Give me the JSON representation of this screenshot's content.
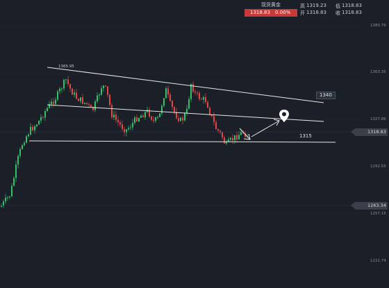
{
  "ticker": {
    "name": "现货黄金",
    "price": "1318.83",
    "change_pct": "0.00%",
    "high_label": "高",
    "high": "1319.23",
    "low_label": "低",
    "low": "1318.83",
    "open_label": "开",
    "open": "1318.83",
    "close_label": "收",
    "close": "1318.83"
  },
  "price_axis": {
    "labels": [
      "1380.76",
      "1363.35",
      "1327.86",
      "1292.55",
      "1257.15",
      "1221.74"
    ]
  },
  "price_tags": {
    "current": "1318.83",
    "lower": "1263.34"
  },
  "annotations": {
    "high_mark": "1365.95",
    "target_upper": "1340",
    "target_lower": "1315"
  },
  "colors": {
    "background": "#1b1f28",
    "up": "#32c26a",
    "down": "#e24848",
    "trendline": "#e8e8e8",
    "price_box": "#c83a3a"
  },
  "icons": {
    "marker": "location-pin-icon"
  },
  "chart_data": {
    "type": "candlestick",
    "y_axis_ticks": [
      1380.76,
      1363.35,
      1327.86,
      1292.55,
      1257.15,
      1221.74
    ],
    "current_price": 1318.83,
    "grid": true
  }
}
